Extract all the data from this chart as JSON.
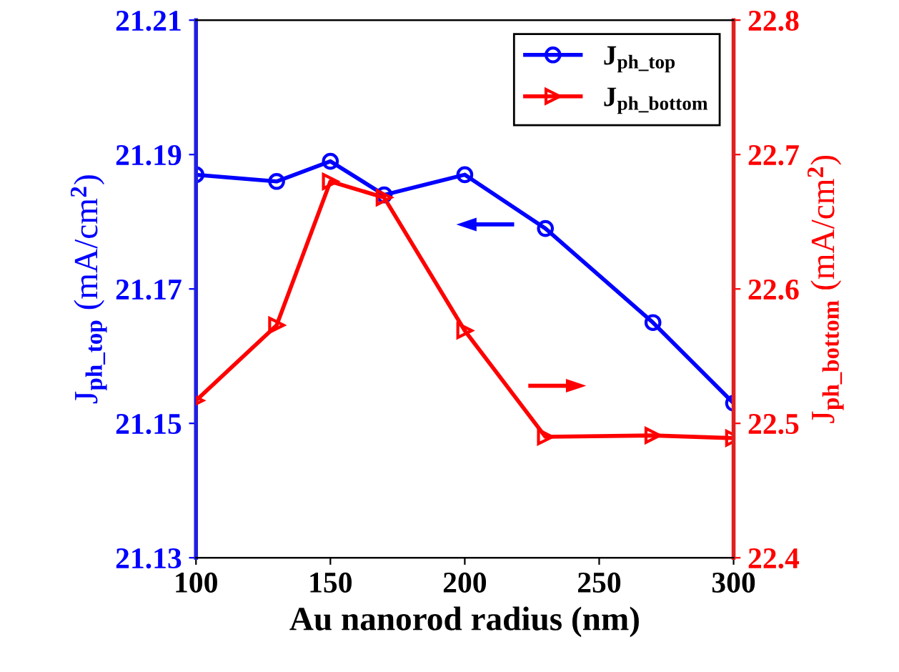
{
  "chart_data": {
    "type": "line",
    "xlabel": "Au nanorod radius (nm)",
    "ylabel": "J$_{ph_top}$ (mA/cm$^{2}$)",
    "y2label": "J$_{ph_bottom}$ (mA/cm$^{2}$)",
    "x": [
      100,
      130,
      150,
      170,
      200,
      230,
      270,
      300
    ],
    "series": [
      {
        "name": "J$_{ph_top}$",
        "color": "#0000ff",
        "marker": "circle",
        "values": [
          21.187,
          21.186,
          21.189,
          21.184,
          21.187,
          21.179,
          21.165,
          21.153
        ]
      },
      {
        "name": "J$_{ph_bottom}$",
        "color": "#ff0000",
        "marker": "triangle",
        "axis": "y2",
        "values": [
          22.517,
          22.573,
          22.68,
          22.668,
          22.569,
          22.49,
          22.491,
          22.489
        ]
      }
    ],
    "xlim": [
      100,
      300
    ],
    "xticks": [
      100,
      150,
      200,
      250,
      300
    ],
    "ylim": [
      21.13,
      21.21
    ],
    "yticks": [
      21.13,
      21.15,
      21.17,
      21.19,
      21.21
    ],
    "y2lim": [
      22.4,
      22.8
    ],
    "y2ticks": [
      22.4,
      22.5,
      22.6,
      22.7,
      22.8
    ],
    "legend": "top right",
    "grid": false,
    "line_style": "solid"
  }
}
